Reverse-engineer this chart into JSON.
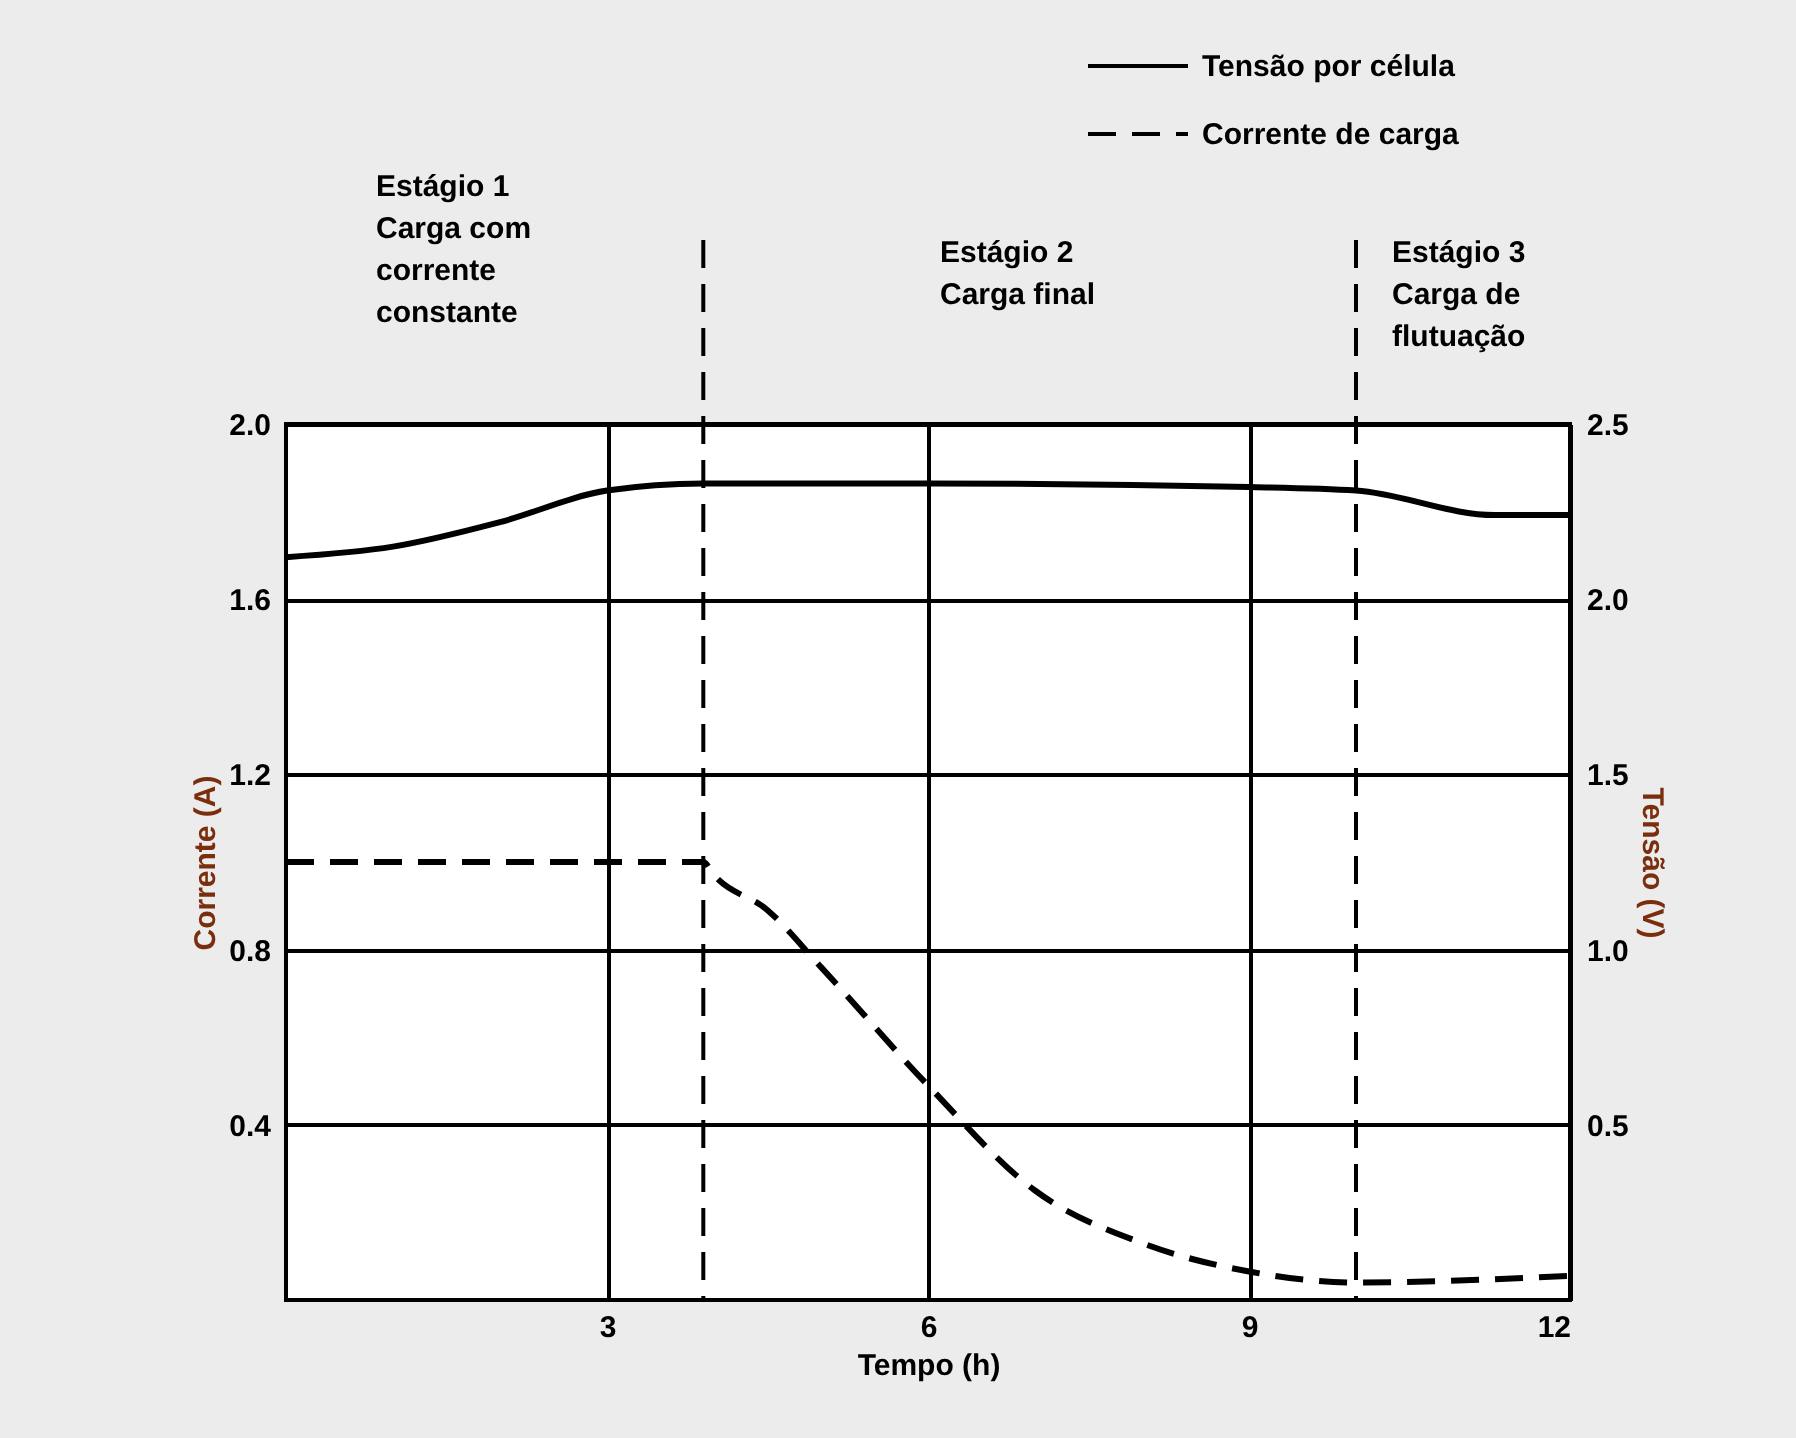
{
  "chart_data": {
    "type": "line",
    "xlabel": "Tempo (h)",
    "ylabel": "Corrente (A)",
    "y2label": "Tensão (V)",
    "xlim": [
      0,
      12
    ],
    "xticks": [
      3,
      6,
      9,
      12
    ],
    "ylim": [
      0,
      2.0
    ],
    "yticks": [
      0.4,
      0.8,
      1.2,
      1.6,
      {
        "value": 2,
        "label": "2.0"
      }
    ],
    "y2lim": [
      0,
      2.5
    ],
    "y2ticks": [
      0.5,
      {
        "value": 1,
        "label": "1.0"
      },
      1.5,
      {
        "value": 2,
        "label": "2.0"
      },
      2.5
    ],
    "grid": true,
    "legend": "top right",
    "series": [
      {
        "name": "Tensão por célula",
        "color": "#000000",
        "axis": "y2",
        "line_style": "solid",
        "x": [
          0,
          1,
          2,
          3,
          3.9,
          6,
          9,
          10,
          11.3,
          12
        ],
        "values": [
          2.12,
          2.15,
          2.22,
          2.31,
          2.33,
          2.33,
          2.32,
          2.31,
          2.24,
          2.24
        ]
      },
      {
        "name": "Corrente de carga",
        "color": "#000000",
        "axis": "y",
        "line_style": "dashed",
        "x": [
          0,
          3.9,
          4,
          4.5,
          5,
          6,
          7,
          8,
          9,
          10,
          12
        ],
        "values": [
          1.0,
          1.0,
          0.97,
          0.89,
          0.76,
          0.49,
          0.25,
          0.13,
          0.065,
          0.04,
          0.055
        ]
      }
    ],
    "ref_lines": [
      {
        "axis": "x",
        "value": 3.9,
        "color": "#000000",
        "line_style": "dashed"
      },
      {
        "axis": "x",
        "value": 10,
        "color": "#000000",
        "line_style": "dashed"
      }
    ],
    "annotations": [
      "Estágio 1\nCarga com\ncorrente\nconstante",
      "Estágio 2\nCarga final",
      "Estágio 3\nCarga de\nflutuação"
    ]
  }
}
